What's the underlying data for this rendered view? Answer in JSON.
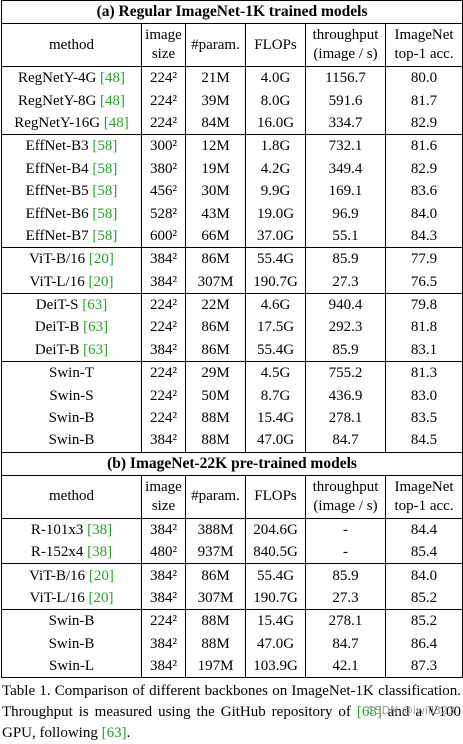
{
  "sections": [
    {
      "title": "(a) Regular ImageNet-1K trained models",
      "header": [
        [
          "method"
        ],
        [
          "image",
          "size"
        ],
        [
          "#param."
        ],
        [
          "FLOPs"
        ],
        [
          "throughput",
          "(image / s)"
        ],
        [
          "ImageNet",
          "top-1 acc."
        ]
      ],
      "groups": [
        [
          {
            "method": "RegNetY-4G",
            "cite": "[48]",
            "size": "224²",
            "params": "21M",
            "flops": "4.0G",
            "throughput": "1156.7",
            "acc": "80.0"
          },
          {
            "method": "RegNetY-8G",
            "cite": "[48]",
            "size": "224²",
            "params": "39M",
            "flops": "8.0G",
            "throughput": "591.6",
            "acc": "81.7"
          },
          {
            "method": "RegNetY-16G",
            "cite": "[48]",
            "size": "224²",
            "params": "84M",
            "flops": "16.0G",
            "throughput": "334.7",
            "acc": "82.9"
          }
        ],
        [
          {
            "method": "EffNet-B3",
            "cite": "[58]",
            "size": "300²",
            "params": "12M",
            "flops": "1.8G",
            "throughput": "732.1",
            "acc": "81.6"
          },
          {
            "method": "EffNet-B4",
            "cite": "[58]",
            "size": "380²",
            "params": "19M",
            "flops": "4.2G",
            "throughput": "349.4",
            "acc": "82.9"
          },
          {
            "method": "EffNet-B5",
            "cite": "[58]",
            "size": "456²",
            "params": "30M",
            "flops": "9.9G",
            "throughput": "169.1",
            "acc": "83.6"
          },
          {
            "method": "EffNet-B6",
            "cite": "[58]",
            "size": "528²",
            "params": "43M",
            "flops": "19.0G",
            "throughput": "96.9",
            "acc": "84.0"
          },
          {
            "method": "EffNet-B7",
            "cite": "[58]",
            "size": "600²",
            "params": "66M",
            "flops": "37.0G",
            "throughput": "55.1",
            "acc": "84.3"
          }
        ],
        [
          {
            "method": "ViT-B/16",
            "cite": "[20]",
            "size": "384²",
            "params": "86M",
            "flops": "55.4G",
            "throughput": "85.9",
            "acc": "77.9"
          },
          {
            "method": "ViT-L/16",
            "cite": "[20]",
            "size": "384²",
            "params": "307M",
            "flops": "190.7G",
            "throughput": "27.3",
            "acc": "76.5"
          }
        ],
        [
          {
            "method": "DeiT-S",
            "cite": "[63]",
            "size": "224²",
            "params": "22M",
            "flops": "4.6G",
            "throughput": "940.4",
            "acc": "79.8"
          },
          {
            "method": "DeiT-B",
            "cite": "[63]",
            "size": "224²",
            "params": "86M",
            "flops": "17.5G",
            "throughput": "292.3",
            "acc": "81.8"
          },
          {
            "method": "DeiT-B",
            "cite": "[63]",
            "size": "384²",
            "params": "86M",
            "flops": "55.4G",
            "throughput": "85.9",
            "acc": "83.1"
          }
        ],
        [
          {
            "method": "Swin-T",
            "size": "224²",
            "params": "29M",
            "flops": "4.5G",
            "throughput": "755.2",
            "acc": "81.3"
          },
          {
            "method": "Swin-S",
            "size": "224²",
            "params": "50M",
            "flops": "8.7G",
            "throughput": "436.9",
            "acc": "83.0"
          },
          {
            "method": "Swin-B",
            "size": "224²",
            "params": "88M",
            "flops": "15.4G",
            "throughput": "278.1",
            "acc": "83.5"
          },
          {
            "method": "Swin-B",
            "size": "384²",
            "params": "88M",
            "flops": "47.0G",
            "throughput": "84.7",
            "acc": "84.5"
          }
        ]
      ]
    },
    {
      "title": "(b) ImageNet-22K pre-trained models",
      "header": [
        [
          "method"
        ],
        [
          "image",
          "size"
        ],
        [
          "#param."
        ],
        [
          "FLOPs"
        ],
        [
          "throughput",
          "(image / s)"
        ],
        [
          "ImageNet",
          "top-1 acc."
        ]
      ],
      "groups": [
        [
          {
            "method": "R-101x3",
            "cite": "[38]",
            "size": "384²",
            "params": "388M",
            "flops": "204.6G",
            "throughput": "-",
            "acc": "84.4"
          },
          {
            "method": "R-152x4",
            "cite": "[38]",
            "size": "480²",
            "params": "937M",
            "flops": "840.5G",
            "throughput": "-",
            "acc": "85.4"
          }
        ],
        [
          {
            "method": "ViT-B/16",
            "cite": "[20]",
            "size": "384²",
            "params": "86M",
            "flops": "55.4G",
            "throughput": "85.9",
            "acc": "84.0"
          },
          {
            "method": "ViT-L/16",
            "cite": "[20]",
            "size": "384²",
            "params": "307M",
            "flops": "190.7G",
            "throughput": "27.3",
            "acc": "85.2"
          }
        ],
        [
          {
            "method": "Swin-B",
            "size": "224²",
            "params": "88M",
            "flops": "15.4G",
            "throughput": "278.1",
            "acc": "85.2"
          },
          {
            "method": "Swin-B",
            "size": "384²",
            "params": "88M",
            "flops": "47.0G",
            "throughput": "84.7",
            "acc": "86.4"
          },
          {
            "method": "Swin-L",
            "size": "384²",
            "params": "197M",
            "flops": "103.9G",
            "throughput": "42.1",
            "acc": "87.3"
          }
        ]
      ]
    }
  ],
  "caption": [
    {
      "text": "Table 1. Comparison of different backbones on ImageNet-1K classification. Throughput is measured using the GitHub repository of "
    },
    {
      "cite": "[68]"
    },
    {
      "text": " and a V100 GPU, following "
    },
    {
      "cite": "[63]"
    },
    {
      "text": "."
    }
  ],
  "watermark": "CSDN @iwill323"
}
